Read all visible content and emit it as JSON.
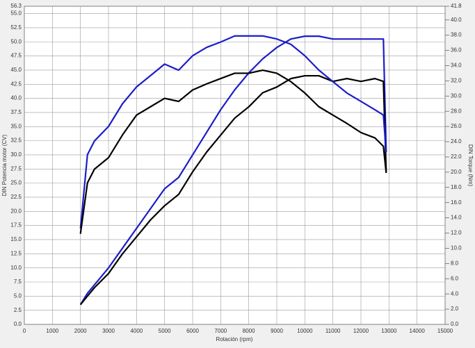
{
  "chart_data": {
    "type": "line",
    "xlabel": "Rotación (rpm)",
    "ylabel": "DIN Potencia motor (CV)",
    "y2label": "DIN Torque (Nm)",
    "x": [
      2000,
      2250,
      2500,
      3000,
      3500,
      4000,
      4500,
      5000,
      5500,
      6000,
      6500,
      7000,
      7500,
      8000,
      8500,
      9000,
      9500,
      10000,
      10500,
      11000,
      11500,
      12000,
      12500,
      12800,
      12900
    ],
    "series": [
      {
        "color": "#1c1cc8",
        "values": [
          3.5,
          5.5,
          7,
          10,
          13.5,
          17,
          20.5,
          24,
          26,
          30,
          34,
          38,
          41.5,
          44.5,
          47,
          49,
          50.5,
          51,
          51,
          50.5,
          50.5,
          50.5,
          50.5,
          50.5,
          30.5
        ]
      },
      {
        "color": "#000000",
        "values": [
          3.5,
          5,
          6.5,
          9,
          12.5,
          15.5,
          18.5,
          21,
          23,
          27,
          30.5,
          33.5,
          36.5,
          38.5,
          41,
          42,
          43.5,
          44,
          44,
          43,
          43.5,
          43,
          43.5,
          43,
          27
        ]
      },
      {
        "color": "#1c1cc8",
        "axis": "y2",
        "values": [
          12.6,
          22.3,
          24.1,
          26.0,
          29.0,
          31.2,
          32.7,
          34.2,
          33.4,
          35.3,
          36.4,
          37.1,
          37.9,
          37.9,
          37.9,
          37.5,
          36.8,
          35.3,
          33.4,
          31.9,
          30.4,
          29.3,
          28.2,
          27.5,
          22.6
        ]
      },
      {
        "color": "#000000",
        "axis": "y2",
        "values": [
          11.9,
          18.6,
          20.4,
          21.9,
          24.9,
          27.5,
          28.6,
          29.7,
          29.3,
          30.8,
          31.6,
          32.3,
          33.0,
          33.0,
          33.4,
          33.0,
          31.9,
          30.4,
          28.6,
          27.5,
          26.4,
          25.2,
          24.5,
          23.4,
          19.9
        ]
      }
    ],
    "xlim": [
      0,
      15000
    ],
    "xticks": [
      0,
      1000,
      2000,
      3000,
      4000,
      5000,
      6000,
      7000,
      8000,
      9000,
      10000,
      11000,
      12000,
      13000,
      14000,
      15000
    ],
    "ylim": [
      0,
      56.3
    ],
    "yticks": [
      {
        "value": 0,
        "label": "0.0"
      },
      2.5,
      {
        "value": 5,
        "label": "5.0"
      },
      7.5,
      {
        "value": 10,
        "label": "10.0"
      },
      12.5,
      {
        "value": 15,
        "label": "15.0"
      },
      17.5,
      {
        "value": 20,
        "label": "20.0"
      },
      22.5,
      {
        "value": 25,
        "label": "25.0"
      },
      27.5,
      {
        "value": 30,
        "label": "30.0"
      },
      32.5,
      {
        "value": 35,
        "label": "35.0"
      },
      37.5,
      {
        "value": 40,
        "label": "40.0"
      },
      42.5,
      {
        "value": 45,
        "label": "45.0"
      },
      47.5,
      {
        "value": 50,
        "label": "50.0"
      },
      52.5,
      {
        "value": 55,
        "label": "55.0"
      },
      56.3
    ],
    "y2lim": [
      0,
      41.8
    ],
    "y2ticks": [
      {
        "value": 0,
        "label": "0.0"
      },
      {
        "value": 2,
        "label": "2.0"
      },
      {
        "value": 4,
        "label": "4.0"
      },
      {
        "value": 6,
        "label": "6.0"
      },
      {
        "value": 8,
        "label": "8.0"
      },
      {
        "value": 10,
        "label": "10.0"
      },
      {
        "value": 12,
        "label": "12.0"
      },
      {
        "value": 14,
        "label": "14.0"
      },
      {
        "value": 16,
        "label": "16.0"
      },
      {
        "value": 18,
        "label": "18.0"
      },
      {
        "value": 20,
        "label": "20.0"
      },
      {
        "value": 22,
        "label": "22.0"
      },
      {
        "value": 24,
        "label": "24.0"
      },
      {
        "value": 26,
        "label": "26.0"
      },
      {
        "value": 28,
        "label": "28.0"
      },
      {
        "value": 30,
        "label": "30.0"
      },
      {
        "value": 32,
        "label": "32.0"
      },
      {
        "value": 34,
        "label": "34.0"
      },
      {
        "value": 36,
        "label": "36.0"
      },
      {
        "value": 38,
        "label": "38.0"
      },
      {
        "value": 40,
        "label": "40.0"
      },
      41.8
    ],
    "grid": true
  }
}
